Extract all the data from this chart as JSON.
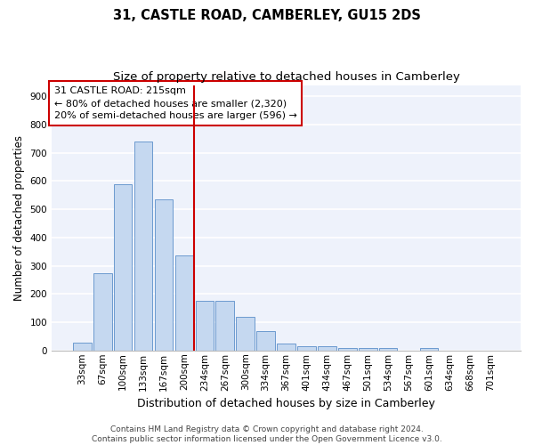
{
  "title": "31, CASTLE ROAD, CAMBERLEY, GU15 2DS",
  "subtitle": "Size of property relative to detached houses in Camberley",
  "xlabel": "Distribution of detached houses by size in Camberley",
  "ylabel": "Number of detached properties",
  "bar_labels": [
    "33sqm",
    "67sqm",
    "100sqm",
    "133sqm",
    "167sqm",
    "200sqm",
    "234sqm",
    "267sqm",
    "300sqm",
    "334sqm",
    "367sqm",
    "401sqm",
    "434sqm",
    "467sqm",
    "501sqm",
    "534sqm",
    "567sqm",
    "601sqm",
    "634sqm",
    "668sqm",
    "701sqm"
  ],
  "bar_values": [
    27,
    275,
    590,
    740,
    535,
    335,
    175,
    175,
    120,
    68,
    25,
    15,
    15,
    10,
    10,
    10,
    0,
    10,
    0,
    0,
    0
  ],
  "bar_color": "#c5d8f0",
  "bar_edgecolor": "#5b8fc9",
  "background_color": "#eef2fb",
  "grid_color": "#ffffff",
  "annotation_box_text": "31 CASTLE ROAD: 215sqm\n← 80% of detached houses are smaller (2,320)\n20% of semi-detached houses are larger (596) →",
  "annotation_box_edgecolor": "#cc0000",
  "vline_x": 5.5,
  "vline_color": "#cc0000",
  "ylim": [
    0,
    940
  ],
  "yticks": [
    0,
    100,
    200,
    300,
    400,
    500,
    600,
    700,
    800,
    900
  ],
  "footnote": "Contains HM Land Registry data © Crown copyright and database right 2024.\nContains public sector information licensed under the Open Government Licence v3.0.",
  "title_fontsize": 10.5,
  "subtitle_fontsize": 9.5,
  "xlabel_fontsize": 9,
  "ylabel_fontsize": 8.5,
  "tick_fontsize": 7.5,
  "annot_fontsize": 8,
  "footnote_fontsize": 6.5
}
